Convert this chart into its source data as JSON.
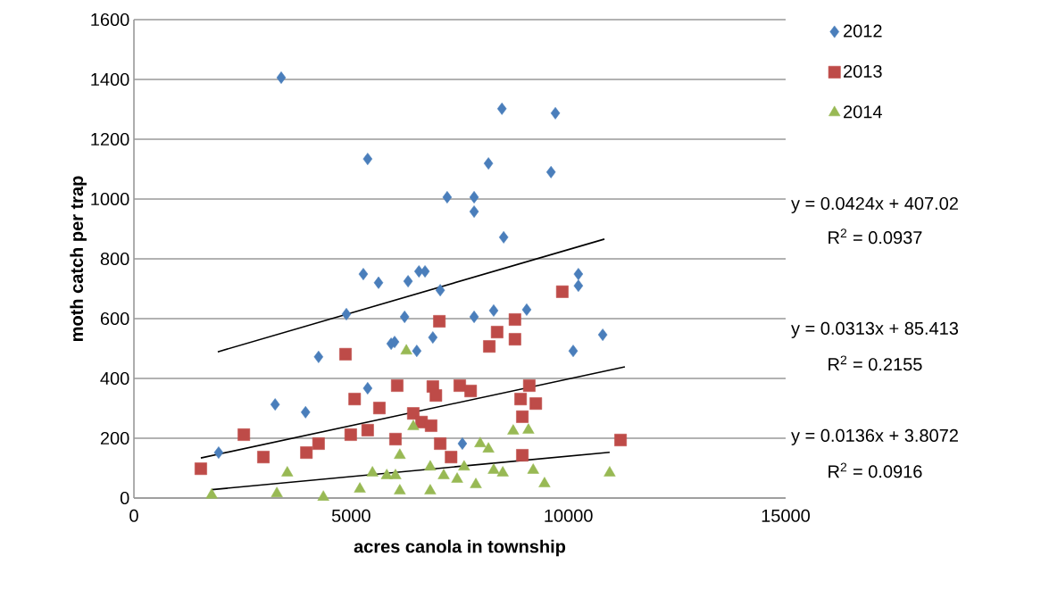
{
  "chart_data": {
    "type": "scatter",
    "xlabel": "acres canola in township",
    "ylabel": "moth catch per trap",
    "xlim": [
      0,
      15000
    ],
    "xticks": [
      0,
      5000,
      10000,
      15000
    ],
    "ylim": [
      0,
      1600
    ],
    "yticks": [
      0,
      200,
      400,
      600,
      800,
      1000,
      1200,
      1400,
      1600
    ],
    "grid": "y",
    "legend": "right",
    "series": [
      {
        "name": "2012",
        "color": "#4a7ebb",
        "marker": "diamond",
        "x": [
          1950,
          3250,
          3390,
          3950,
          4250,
          4890,
          5280,
          5380,
          5380,
          5630,
          5920,
          6000,
          6230,
          6310,
          6510,
          6560,
          6700,
          6880,
          7050,
          7210,
          7560,
          7830,
          7830,
          7830,
          8160,
          8280,
          8470,
          8510,
          9040,
          9600,
          9700,
          10110,
          10230,
          10230,
          10790
        ],
        "values": [
          152,
          313,
          1406,
          287,
          472,
          615,
          749,
          367,
          1134,
          720,
          516,
          522,
          606,
          725,
          492,
          758,
          758,
          537,
          695,
          1006,
          182,
          606,
          1006,
          958,
          1119,
          627,
          1302,
          872,
          630,
          1090,
          1287,
          492,
          749,
          710,
          546
        ]
      },
      {
        "name": "2013",
        "color": "#be4b48",
        "marker": "square",
        "x": [
          1540,
          2530,
          2980,
          3970,
          4250,
          4870,
          5080,
          4990,
          5380,
          5650,
          6060,
          6020,
          6430,
          6880,
          6950,
          6620,
          6840,
          7050,
          7300,
          7500,
          7750,
          7030,
          8360,
          8180,
          8770,
          8770,
          9860,
          9100,
          8900,
          9250,
          8940,
          8940,
          11200
        ],
        "values": [
          98,
          212,
          137,
          152,
          182,
          481,
          331,
          212,
          227,
          301,
          376,
          197,
          283,
          373,
          343,
          254,
          242,
          182,
          137,
          376,
          358,
          591,
          555,
          507,
          597,
          531,
          690,
          376,
          331,
          316,
          272,
          143,
          194
        ]
      },
      {
        "name": "2014",
        "color": "#98b954",
        "marker": "triangle",
        "x": [
          1790,
          3530,
          3290,
          4360,
          5200,
          5490,
          5820,
          6270,
          6430,
          6120,
          6020,
          6120,
          6820,
          6820,
          7130,
          7440,
          7600,
          7870,
          7970,
          8160,
          8280,
          8490,
          8730,
          9080,
          9190,
          9450,
          10950
        ],
        "values": [
          10,
          84,
          15,
          3,
          30,
          84,
          75,
          492,
          239,
          143,
          75,
          24,
          104,
          24,
          75,
          63,
          104,
          45,
          182,
          164,
          93,
          84,
          224,
          227,
          93,
          48,
          84
        ]
      },
      {
        "type": "line",
        "color": "#000000",
        "marker": "none",
        "x": [
          1930,
          10830
        ],
        "values": [
          489,
          866
        ]
      },
      {
        "type": "line",
        "color": "#000000",
        "marker": "none",
        "x": [
          1540,
          11300
        ],
        "values": [
          134,
          439
        ]
      },
      {
        "type": "line",
        "color": "#000000",
        "marker": "none",
        "x": [
          1790,
          10950
        ],
        "values": [
          28,
          153
        ]
      }
    ],
    "annotations": [
      "y = 0.0424x + 407.02",
      "R$^{2}$ = 0.0937",
      "y = 0.0313x + 85.413",
      "R$^{2}$ = 0.2155",
      "y = 0.0136x + 3.8072",
      "R$^{2}$ = 0.0916"
    ]
  }
}
